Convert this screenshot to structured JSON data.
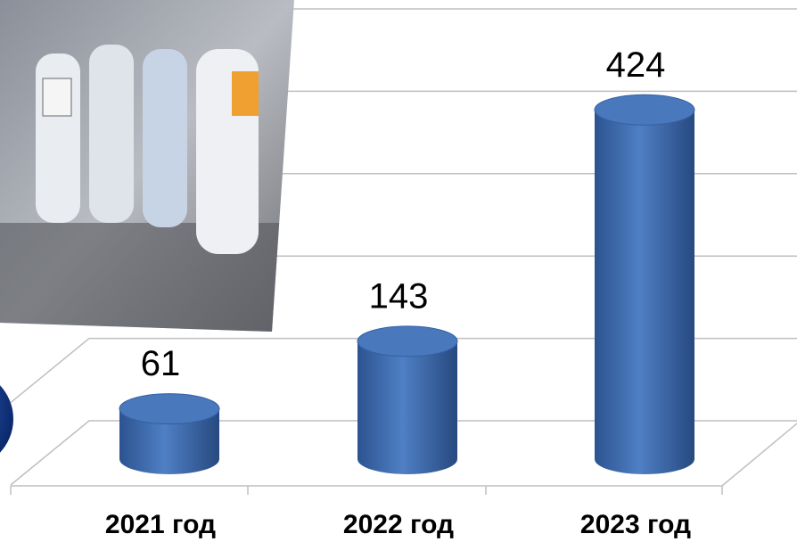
{
  "chart_data": {
    "type": "bar",
    "categories": [
      "2021 год",
      "2022 год",
      "2023 год"
    ],
    "values": [
      61,
      143,
      424
    ],
    "color": "#3a67ae",
    "ylim": [
      0,
      500
    ],
    "yticks": [
      0,
      100,
      200,
      300,
      400,
      500
    ],
    "grid": true
  }
}
